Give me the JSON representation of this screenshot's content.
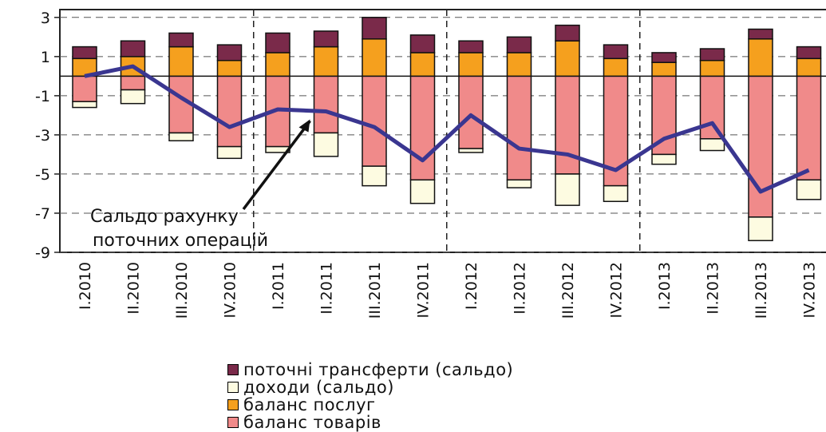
{
  "chart_data": {
    "type": "bar",
    "stacked": true,
    "categories": [
      "I.2010",
      "II.2010",
      "III.2010",
      "IV.2010",
      "I.2011",
      "II.2011",
      "III.2011",
      "IV.2011",
      "I.2012",
      "II.2012",
      "III.2012",
      "IV.2012",
      "I.2013",
      "II.2013",
      "III.2013",
      "IV.2013"
    ],
    "ylim": [
      -9,
      3.4
    ],
    "yticks": [
      "3",
      "1",
      "-1",
      "-3",
      "-5",
      "-7",
      "-9"
    ],
    "ytick_values": [
      3,
      1,
      -1,
      -3,
      -5,
      -7,
      -9
    ],
    "grid": "horizontal dashed",
    "year_separators_after": [
      3,
      7,
      11
    ],
    "series": [
      {
        "name": "баланс товарів",
        "color": "#f08a8a",
        "values": [
          -1.3,
          -0.7,
          -2.9,
          -3.6,
          -3.6,
          -2.9,
          -4.6,
          -5.3,
          -3.7,
          -5.3,
          -5.0,
          -5.6,
          -4.0,
          -3.2,
          -7.2,
          -5.3
        ]
      },
      {
        "name": "доходи (сальдо)",
        "color": "#fdfbe1",
        "values": [
          -0.3,
          -0.7,
          -0.4,
          -0.6,
          -0.3,
          -1.2,
          -1.0,
          -1.2,
          -0.2,
          -0.4,
          -1.6,
          -0.8,
          -0.5,
          -0.6,
          -1.2,
          -1.0
        ]
      },
      {
        "name": "баланс послуг",
        "color": "#f5a01e",
        "values": [
          0.9,
          1.0,
          1.5,
          0.8,
          1.2,
          1.5,
          1.9,
          1.2,
          1.2,
          1.2,
          1.8,
          0.9,
          0.7,
          0.8,
          1.9,
          0.9
        ]
      },
      {
        "name": "поточні трансферти (сальдо)",
        "color": "#7a2a4a",
        "values": [
          0.6,
          0.8,
          0.7,
          0.8,
          1.0,
          0.8,
          1.1,
          0.9,
          0.6,
          0.8,
          0.8,
          0.7,
          0.5,
          0.6,
          0.5,
          0.6
        ]
      }
    ],
    "line": {
      "name": "Сальдо рахунку поточних операцій",
      "color": "#3a3690",
      "values": [
        0,
        0.5,
        -1.1,
        -2.6,
        -1.7,
        -1.8,
        -2.6,
        -4.3,
        -2.0,
        -3.7,
        -4.0,
        -4.8,
        -3.2,
        -2.4,
        -5.9,
        -4.8
      ]
    },
    "annotation": {
      "lines": [
        "Сальдо рахунку",
        "поточних операцій"
      ],
      "points_to_index": 5
    }
  },
  "legend": {
    "items": [
      {
        "label": "поточні трансферти (сальдо)",
        "color": "#7a2a4a"
      },
      {
        "label": "доходи (сальдо)",
        "color": "#fdfbe1"
      },
      {
        "label": "баланс послуг",
        "color": "#f5a01e"
      },
      {
        "label": "баланс товарів",
        "color": "#f08a8a"
      }
    ]
  }
}
